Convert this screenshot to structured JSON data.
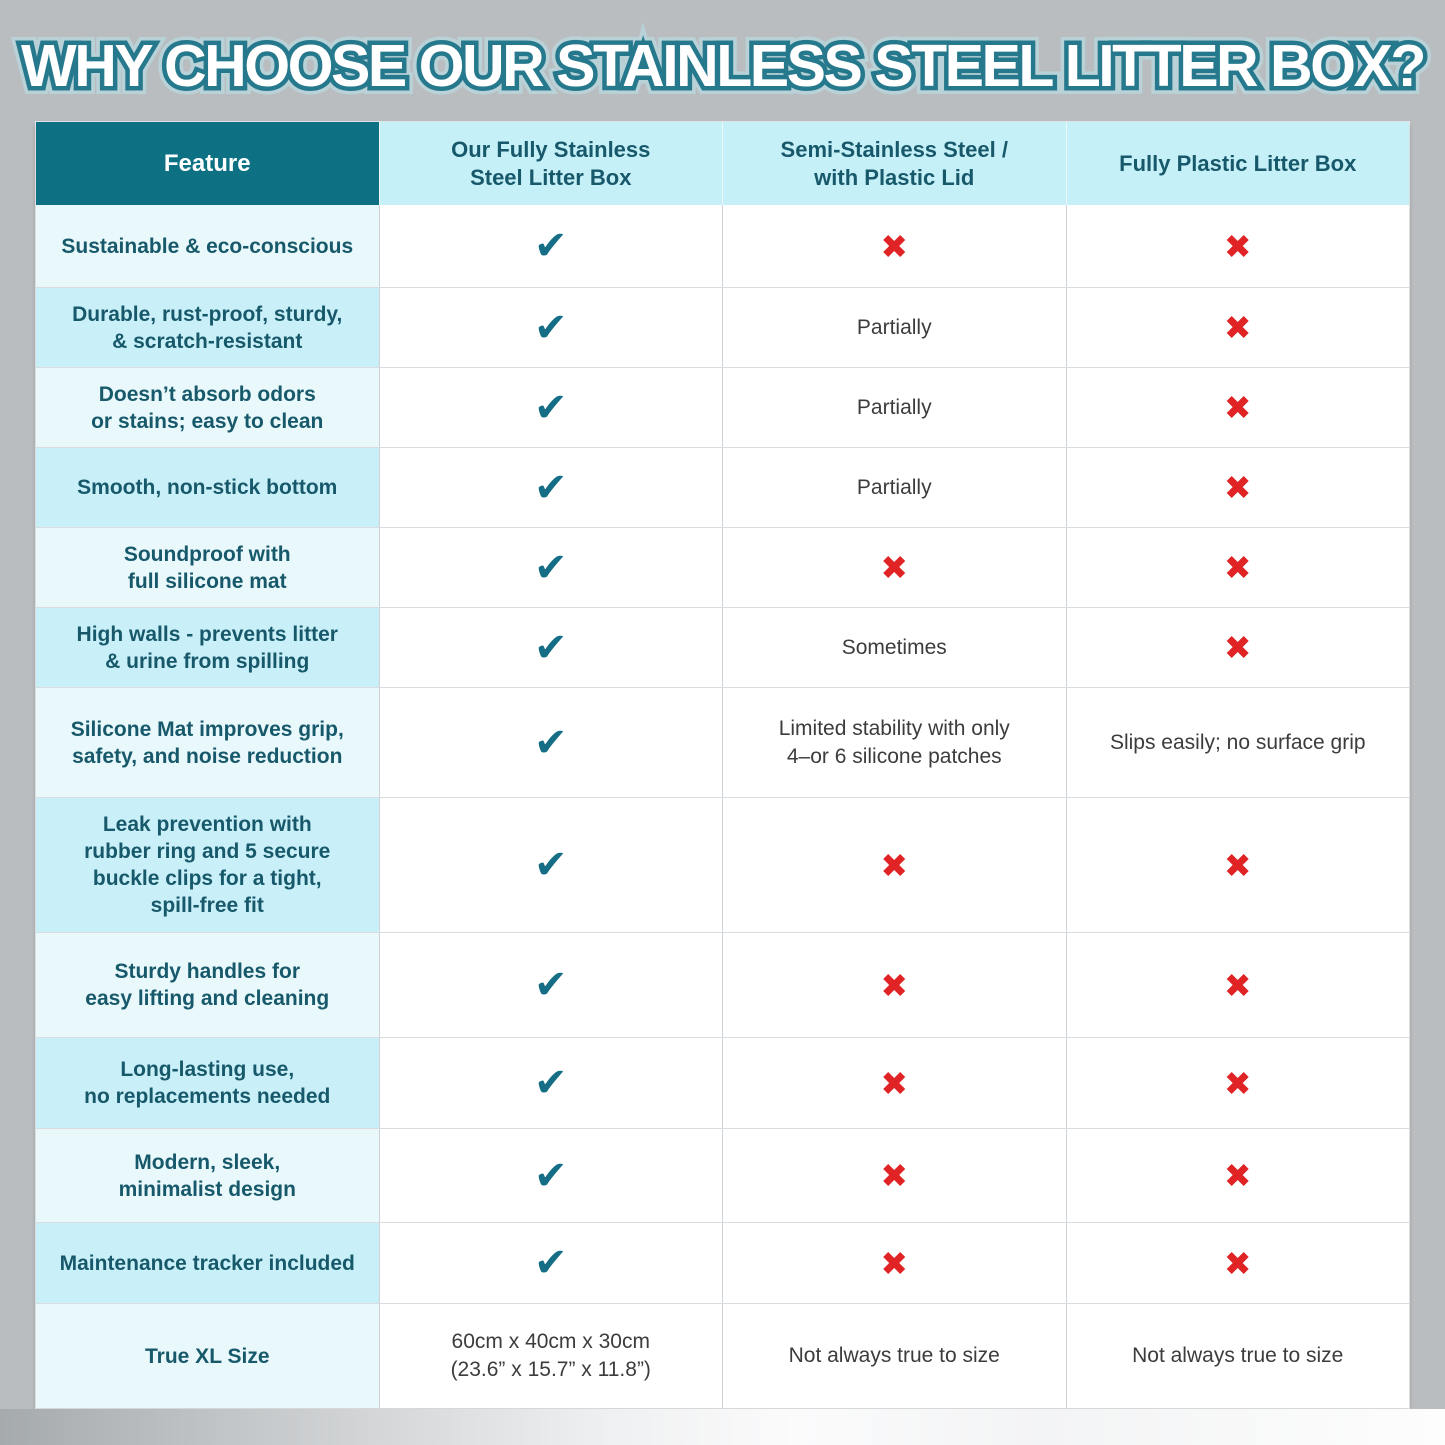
{
  "chart_data": {
    "type": "table",
    "title": "WHY CHOOSE OUR STAINLESS STEEL LITTER BOX?",
    "columns": [
      "Feature",
      "Our Fully Stainless\nSteel Litter Box",
      "Semi-Stainless Steel /\nwith Plastic Lid",
      "Fully Plastic Litter Box"
    ],
    "rows": [
      {
        "feature": "Sustainable & eco-conscious",
        "cells": [
          "@check",
          "@x",
          "@x"
        ]
      },
      {
        "feature": "Durable, rust-proof, sturdy,\n& scratch-resistant",
        "cells": [
          "@check",
          "Partially",
          "@x"
        ]
      },
      {
        "feature": "Doesn’t absorb odors\nor stains; easy to clean",
        "cells": [
          "@check",
          "Partially",
          "@x"
        ]
      },
      {
        "feature": "Smooth, non-stick bottom",
        "cells": [
          "@check",
          "Partially",
          "@x"
        ]
      },
      {
        "feature": "Soundproof with\nfull silicone mat",
        "cells": [
          "@check",
          "@x",
          "@x"
        ]
      },
      {
        "feature": "High walls - prevents litter\n& urine from spilling",
        "cells": [
          "@check",
          "Sometimes",
          "@x"
        ]
      },
      {
        "feature": "Silicone Mat improves grip,\nsafety, and noise reduction",
        "cells": [
          "@check",
          "Limited stability with only\n4–or 6 silicone patches",
          "Slips easily; no surface grip"
        ]
      },
      {
        "feature": "Leak prevention with\nrubber ring and 5 secure\nbuckle clips for a tight,\nspill-free fit",
        "cells": [
          "@check",
          "@x",
          "@x"
        ]
      },
      {
        "feature": "Sturdy handles for\neasy lifting and cleaning",
        "cells": [
          "@check",
          "@x",
          "@x"
        ]
      },
      {
        "feature": "Long-lasting use,\nno replacements needed",
        "cells": [
          "@check",
          "@x",
          "@x"
        ]
      },
      {
        "feature": "Modern, sleek,\nminimalist design",
        "cells": [
          "@check",
          "@x",
          "@x"
        ]
      },
      {
        "feature": "Maintenance tracker included",
        "cells": [
          "@check",
          "@x",
          "@x"
        ]
      },
      {
        "feature": "True XL Size",
        "cells": [
          "60cm x 40cm x 30cm\n(23.6” x 15.7” x 11.8”)",
          "Not always true to size",
          "Not always true to size"
        ]
      }
    ]
  },
  "icons": {
    "check": "✔",
    "x": "✖"
  },
  "colors": {
    "bg": "#b9bdbf",
    "header-teal": "#0d7183",
    "header-cyan": "#c6f0f8",
    "row-light": "#e8f8fb",
    "row-dark": "#c9f0f8",
    "teal-text": "#17596b",
    "data-text": "#3c3c3c",
    "check": "#156e85",
    "cross": "#e02426",
    "title-stroke": "#26798d",
    "title-outer": "#b9d2d8"
  }
}
